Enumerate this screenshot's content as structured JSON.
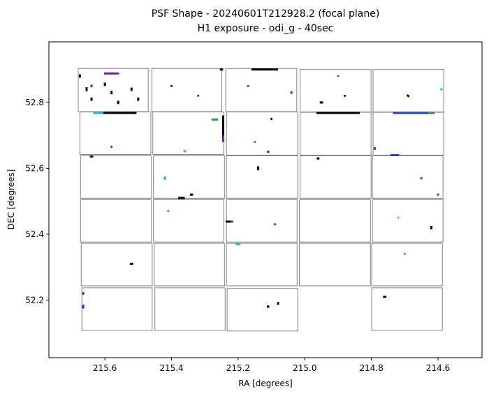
{
  "chart_data": {
    "type": "scatter",
    "title": "PSF Shape - 20240601T212928.2 (focal plane)",
    "subtitle": "H1 exposure - odi_g - 40sec",
    "xlabel": "RA [degrees]",
    "ylabel": "DEC [degrees]",
    "xlim": [
      215.768,
      214.468
    ],
    "ylim": [
      2.525,
      52.984
    ],
    "xlim_note": "RA axis increases to the left",
    "ylim_real": [
      52.025,
      52.984
    ],
    "x_ticks": [
      "215.6",
      "215.4",
      "215.2",
      "215.0",
      "214.8",
      "214.6"
    ],
    "x_tick_values": [
      215.6,
      215.4,
      215.2,
      215.0,
      214.8,
      214.6
    ],
    "y_ticks": [
      "52.2",
      "52.4",
      "52.6",
      "52.8"
    ],
    "y_tick_values": [
      52.2,
      52.4,
      52.6,
      52.8
    ],
    "grid": false,
    "legend": "none",
    "colors": {
      "frame": "#000000",
      "ccd_outline": "#808080",
      "psf_black": "#000000",
      "psf_purple": "#7b1fa2",
      "psf_teal": "#1abc9c",
      "psf_cyan": "#17becf",
      "psf_blue": "#1f3fd6",
      "psf_green": "#2ca02c"
    },
    "ccds": [
      {
        "col": 0,
        "row": 0,
        "ra": [
          215.68,
          215.47
        ],
        "dec": [
          52.772,
          52.903
        ]
      },
      {
        "col": 1,
        "row": 0,
        "ra": [
          215.459,
          215.249
        ],
        "dec": [
          52.772,
          52.903
        ]
      },
      {
        "col": 2,
        "row": 0,
        "ra": [
          215.237,
          215.024
        ],
        "dec": [
          52.772,
          52.903
        ]
      },
      {
        "col": 3,
        "row": 0,
        "ra": [
          215.014,
          214.801
        ],
        "dec": [
          52.77,
          52.9
        ]
      },
      {
        "col": 4,
        "row": 0,
        "ra": [
          214.795,
          214.583
        ],
        "dec": [
          52.77,
          52.9
        ]
      },
      {
        "col": 0,
        "row": 1,
        "ra": [
          215.675,
          215.462
        ],
        "dec": [
          52.642,
          52.771
        ]
      },
      {
        "col": 1,
        "row": 1,
        "ra": [
          215.456,
          215.243
        ],
        "dec": [
          52.642,
          52.771
        ]
      },
      {
        "col": 2,
        "row": 1,
        "ra": [
          215.235,
          215.021
        ],
        "dec": [
          52.64,
          52.771
        ]
      },
      {
        "col": 3,
        "row": 1,
        "ra": [
          215.014,
          214.801
        ],
        "dec": [
          52.64,
          52.771
        ]
      },
      {
        "col": 4,
        "row": 1,
        "ra": [
          214.795,
          214.583
        ],
        "dec": [
          52.64,
          52.771
        ]
      },
      {
        "col": 0,
        "row": 2,
        "ra": [
          215.673,
          215.46
        ],
        "dec": [
          52.509,
          52.638
        ]
      },
      {
        "col": 1,
        "row": 2,
        "ra": [
          215.454,
          215.241
        ],
        "dec": [
          52.509,
          52.638
        ]
      },
      {
        "col": 2,
        "row": 2,
        "ra": [
          215.235,
          215.021
        ],
        "dec": [
          52.509,
          52.638
        ]
      },
      {
        "col": 3,
        "row": 2,
        "ra": [
          215.014,
          214.801
        ],
        "dec": [
          52.509,
          52.638
        ]
      },
      {
        "col": 4,
        "row": 2,
        "ra": [
          214.797,
          214.585
        ],
        "dec": [
          52.509,
          52.638
        ]
      },
      {
        "col": 0,
        "row": 3,
        "ra": [
          215.673,
          215.46
        ],
        "dec": [
          52.376,
          52.505
        ]
      },
      {
        "col": 1,
        "row": 3,
        "ra": [
          215.454,
          215.243
        ],
        "dec": [
          52.376,
          52.505
        ]
      },
      {
        "col": 2,
        "row": 3,
        "ra": [
          215.235,
          215.023
        ],
        "dec": [
          52.376,
          52.505
        ]
      },
      {
        "col": 3,
        "row": 3,
        "ra": [
          215.016,
          214.803
        ],
        "dec": [
          52.376,
          52.505
        ]
      },
      {
        "col": 4,
        "row": 3,
        "ra": [
          214.797,
          214.585
        ],
        "dec": [
          52.376,
          52.505
        ]
      },
      {
        "col": 0,
        "row": 4,
        "ra": [
          215.671,
          215.458
        ],
        "dec": [
          52.243,
          52.372
        ]
      },
      {
        "col": 1,
        "row": 4,
        "ra": [
          215.452,
          215.241
        ],
        "dec": [
          52.243,
          52.372
        ]
      },
      {
        "col": 2,
        "row": 4,
        "ra": [
          215.235,
          215.023
        ],
        "dec": [
          52.243,
          52.372
        ]
      },
      {
        "col": 3,
        "row": 4,
        "ra": [
          215.016,
          214.803
        ],
        "dec": [
          52.243,
          52.372
        ]
      },
      {
        "col": 4,
        "row": 4,
        "ra": [
          214.799,
          214.587
        ],
        "dec": [
          52.243,
          52.372
        ]
      },
      {
        "col": 0,
        "row": 5,
        "ra": [
          215.669,
          215.458
        ],
        "dec": [
          52.108,
          52.237
        ]
      },
      {
        "col": 1,
        "row": 5,
        "ra": [
          215.45,
          215.239
        ],
        "dec": [
          52.108,
          52.237
        ]
      },
      {
        "col": 2,
        "row": 5,
        "ra": [
          215.233,
          215.021
        ],
        "dec": [
          52.106,
          52.235
        ]
      },
      {
        "col": 4,
        "row": 5,
        "ra": [
          214.799,
          214.587
        ],
        "dec": [
          52.108,
          52.237
        ]
      }
    ],
    "psf_segments": [
      {
        "ra": 215.675,
        "dec": 52.88,
        "angle": 90,
        "len": 0.01,
        "color": "psf_black"
      },
      {
        "ra": 215.655,
        "dec": 52.84,
        "angle": 90,
        "len": 0.012,
        "color": "psf_black"
      },
      {
        "ra": 215.64,
        "dec": 52.81,
        "angle": 90,
        "len": 0.01,
        "color": "psf_black"
      },
      {
        "ra": 215.6,
        "dec": 52.855,
        "angle": 90,
        "len": 0.01,
        "color": "psf_black"
      },
      {
        "ra": 215.58,
        "dec": 52.83,
        "angle": 90,
        "len": 0.01,
        "color": "psf_black"
      },
      {
        "ra": 215.56,
        "dec": 52.8,
        "angle": 90,
        "len": 0.01,
        "color": "psf_black"
      },
      {
        "ra": 215.52,
        "dec": 52.84,
        "angle": 90,
        "len": 0.01,
        "color": "psf_black"
      },
      {
        "ra": 215.5,
        "dec": 52.81,
        "angle": 90,
        "len": 0.01,
        "color": "psf_black"
      },
      {
        "ra": 215.58,
        "dec": 52.888,
        "angle": 0,
        "len": 0.045,
        "color": "psf_purple"
      },
      {
        "ra": 215.64,
        "dec": 52.85,
        "angle": 90,
        "len": 0.008,
        "color": "psf_purple"
      },
      {
        "ra": 215.4,
        "dec": 52.85,
        "angle": 90,
        "len": 0.005,
        "color": "psf_black"
      },
      {
        "ra": 215.32,
        "dec": 52.82,
        "angle": 90,
        "len": 0.004,
        "color": "psf_black"
      },
      {
        "ra": 215.25,
        "dec": 52.9,
        "angle": 0,
        "len": 0.01,
        "color": "psf_black"
      },
      {
        "ra": 215.12,
        "dec": 52.9,
        "angle": 0,
        "len": 0.08,
        "color": "psf_black"
      },
      {
        "ra": 215.17,
        "dec": 52.85,
        "angle": 90,
        "len": 0.004,
        "color": "psf_black"
      },
      {
        "ra": 215.04,
        "dec": 52.83,
        "angle": 90,
        "len": 0.008,
        "color": "psf_purple"
      },
      {
        "ra": 214.95,
        "dec": 52.8,
        "angle": 0,
        "len": 0.01,
        "color": "psf_black"
      },
      {
        "ra": 214.88,
        "dec": 52.82,
        "angle": 90,
        "len": 0.005,
        "color": "psf_black"
      },
      {
        "ra": 214.9,
        "dec": 52.88,
        "angle": 90,
        "len": 0.004,
        "color": "psf_purple"
      },
      {
        "ra": 214.69,
        "dec": 52.82,
        "angle": 135,
        "len": 0.008,
        "color": "psf_black"
      },
      {
        "ra": 214.59,
        "dec": 52.84,
        "angle": 0,
        "len": 0.006,
        "color": "psf_cyan"
      },
      {
        "ra": 215.56,
        "dec": 52.768,
        "angle": 0,
        "len": 0.11,
        "color": "psf_black"
      },
      {
        "ra": 215.62,
        "dec": 52.768,
        "angle": 0,
        "len": 0.03,
        "color": "psf_cyan"
      },
      {
        "ra": 215.36,
        "dec": 52.652,
        "angle": 0,
        "len": 0.008,
        "color": "psf_teal"
      },
      {
        "ra": 215.245,
        "dec": 52.71,
        "angle": 90,
        "len": 0.06,
        "color": "psf_purple"
      },
      {
        "ra": 215.245,
        "dec": 52.73,
        "angle": 90,
        "len": 0.06,
        "color": "psf_black"
      },
      {
        "ra": 215.27,
        "dec": 52.748,
        "angle": 0,
        "len": 0.02,
        "color": "psf_green"
      },
      {
        "ra": 215.58,
        "dec": 52.665,
        "angle": 45,
        "len": 0.006,
        "color": "psf_purple"
      },
      {
        "ra": 215.1,
        "dec": 52.75,
        "angle": 45,
        "len": 0.006,
        "color": "psf_black"
      },
      {
        "ra": 215.15,
        "dec": 52.68,
        "angle": 0,
        "len": 0.006,
        "color": "psf_green"
      },
      {
        "ra": 215.11,
        "dec": 52.65,
        "angle": 0,
        "len": 0.008,
        "color": "psf_purple"
      },
      {
        "ra": 214.9,
        "dec": 52.768,
        "angle": 0,
        "len": 0.13,
        "color": "psf_black"
      },
      {
        "ra": 214.68,
        "dec": 52.768,
        "angle": 0,
        "len": 0.11,
        "color": "psf_blue"
      },
      {
        "ra": 214.62,
        "dec": 52.768,
        "angle": 0,
        "len": 0.02,
        "color": "psf_green"
      },
      {
        "ra": 214.79,
        "dec": 52.66,
        "angle": 90,
        "len": 0.008,
        "color": "psf_blue"
      },
      {
        "ra": 214.73,
        "dec": 52.64,
        "angle": 0,
        "len": 0.025,
        "color": "psf_blue"
      },
      {
        "ra": 215.64,
        "dec": 52.636,
        "angle": 0,
        "len": 0.01,
        "color": "psf_black"
      },
      {
        "ra": 215.42,
        "dec": 52.57,
        "angle": 90,
        "len": 0.01,
        "color": "psf_teal"
      },
      {
        "ra": 215.34,
        "dec": 52.52,
        "angle": 0,
        "len": 0.01,
        "color": "psf_black"
      },
      {
        "ra": 215.37,
        "dec": 52.51,
        "angle": 0,
        "len": 0.02,
        "color": "psf_black"
      },
      {
        "ra": 215.14,
        "dec": 52.6,
        "angle": 90,
        "len": 0.012,
        "color": "psf_black"
      },
      {
        "ra": 214.96,
        "dec": 52.63,
        "angle": 0,
        "len": 0.008,
        "color": "psf_black"
      },
      {
        "ra": 214.65,
        "dec": 52.57,
        "angle": 45,
        "len": 0.006,
        "color": "psf_blue"
      },
      {
        "ra": 214.6,
        "dec": 52.52,
        "angle": 45,
        "len": 0.006,
        "color": "psf_purple"
      },
      {
        "ra": 215.22,
        "dec": 52.438,
        "angle": 0,
        "len": 0.01,
        "color": "psf_purple"
      },
      {
        "ra": 215.23,
        "dec": 52.438,
        "angle": 0,
        "len": 0.015,
        "color": "psf_black"
      },
      {
        "ra": 215.41,
        "dec": 52.47,
        "angle": 135,
        "len": 0.006,
        "color": "psf_teal"
      },
      {
        "ra": 215.09,
        "dec": 52.43,
        "angle": 45,
        "len": 0.006,
        "color": "psf_purple"
      },
      {
        "ra": 214.62,
        "dec": 52.42,
        "angle": 90,
        "len": 0.01,
        "color": "psf_black"
      },
      {
        "ra": 214.72,
        "dec": 52.45,
        "angle": 0,
        "len": 0.004,
        "color": "psf_cyan"
      },
      {
        "ra": 215.52,
        "dec": 52.31,
        "angle": 0,
        "len": 0.01,
        "color": "psf_black"
      },
      {
        "ra": 215.2,
        "dec": 52.37,
        "angle": 0,
        "len": 0.015,
        "color": "psf_teal"
      },
      {
        "ra": 214.7,
        "dec": 52.34,
        "angle": 135,
        "len": 0.006,
        "color": "psf_cyan"
      },
      {
        "ra": 215.08,
        "dec": 52.19,
        "angle": 90,
        "len": 0.008,
        "color": "psf_black"
      },
      {
        "ra": 215.11,
        "dec": 52.18,
        "angle": 0,
        "len": 0.008,
        "color": "psf_black"
      },
      {
        "ra": 215.665,
        "dec": 52.18,
        "angle": 90,
        "len": 0.012,
        "color": "psf_purple"
      },
      {
        "ra": 215.665,
        "dec": 52.22,
        "angle": 90,
        "len": 0.008,
        "color": "psf_blue"
      },
      {
        "ra": 214.76,
        "dec": 52.21,
        "angle": 0,
        "len": 0.01,
        "color": "psf_black"
      }
    ]
  }
}
